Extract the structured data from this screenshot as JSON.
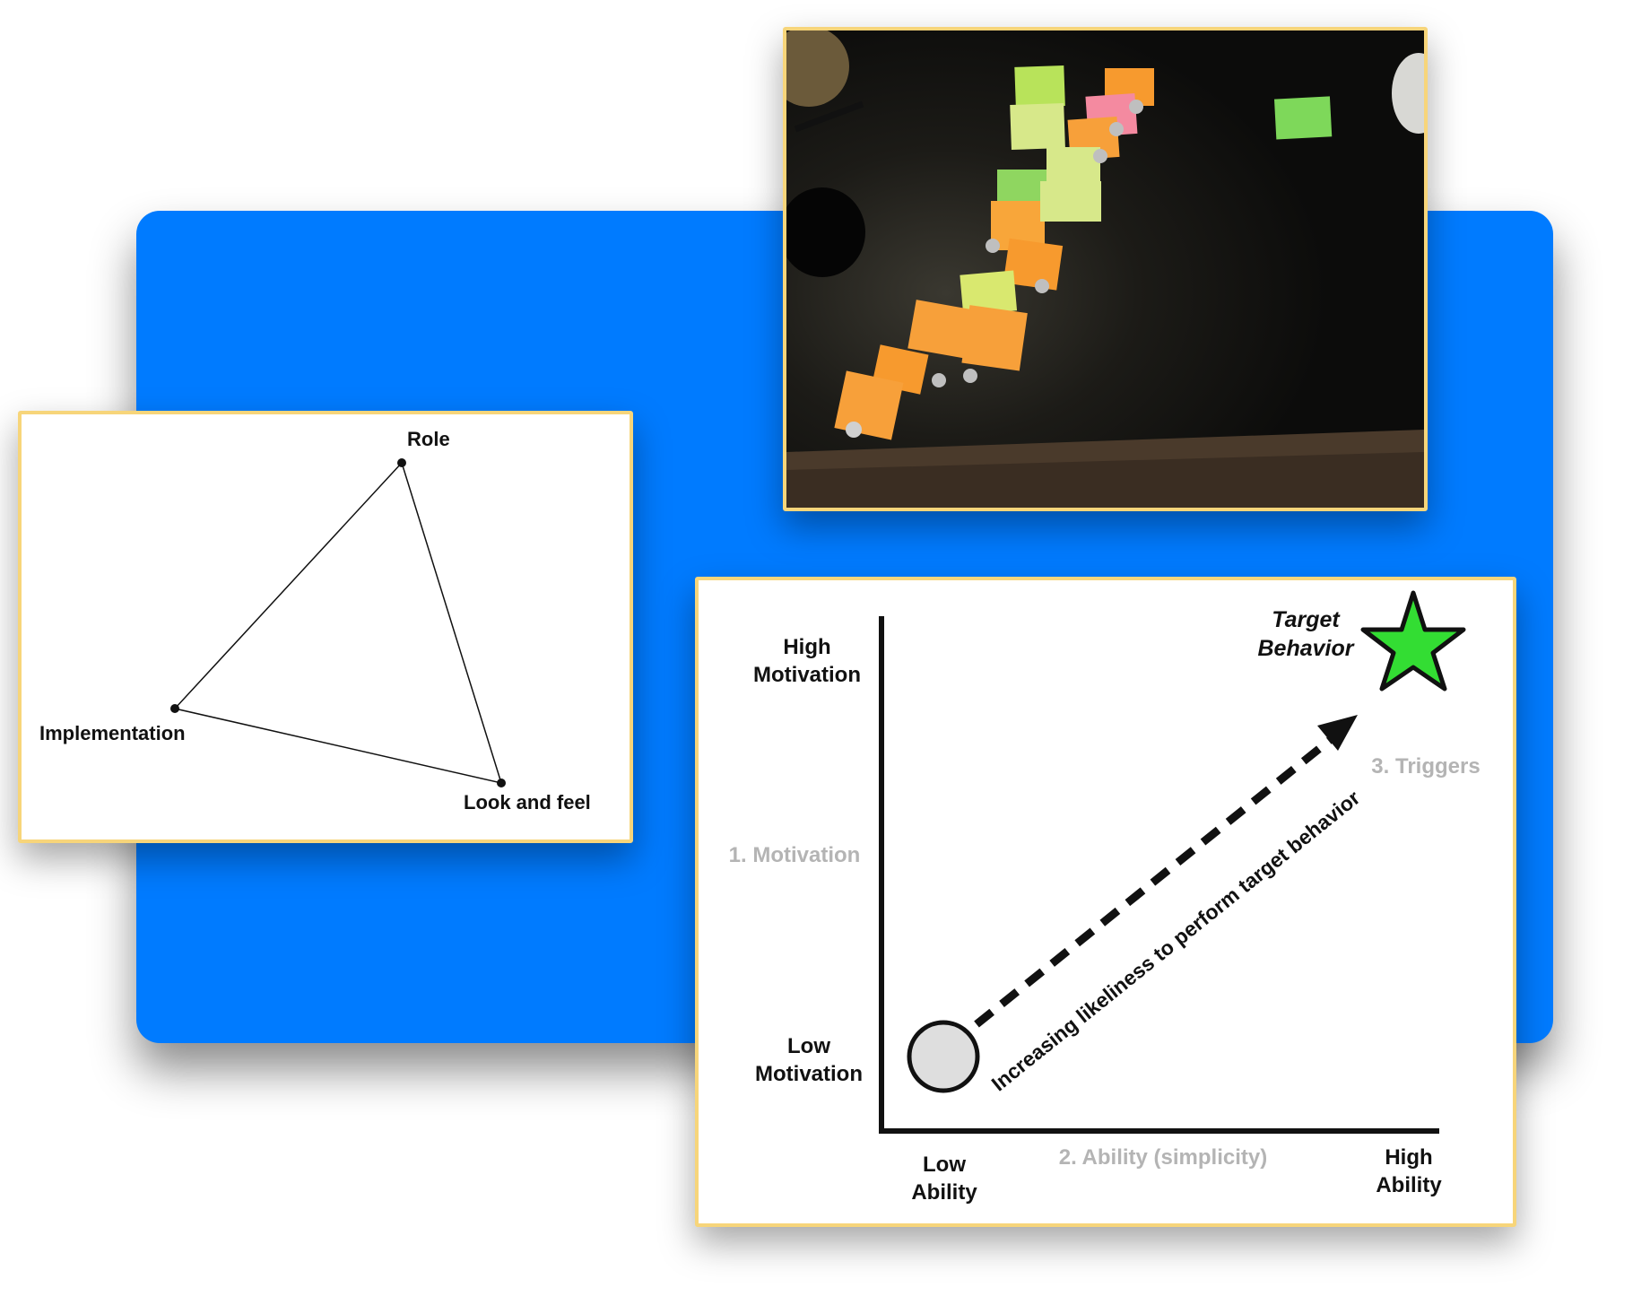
{
  "colors": {
    "panel": "#007bff",
    "card_border": "#f7d57a",
    "star": "#33dd33",
    "muted_label": "#b4b4b4"
  },
  "photo": {
    "description_icon": "sticky-notes-photo"
  },
  "triangle": {
    "vertices": {
      "top": "Role",
      "left": "Implementation",
      "bottom_right": "Look and feel"
    }
  },
  "fogg": {
    "y_high": [
      "High",
      "Motivation"
    ],
    "y_low": [
      "Low",
      "Motivation"
    ],
    "y_axis_title": "1. Motivation",
    "x_low": [
      "Low",
      "Ability"
    ],
    "x_high": [
      "High",
      "Ability"
    ],
    "x_axis_title": "2. Ability (simplicity)",
    "triggers": "3. Triggers",
    "target": [
      "Target",
      "Behavior"
    ],
    "arrow_label": "Increasing likeliness to perform target behavior"
  }
}
